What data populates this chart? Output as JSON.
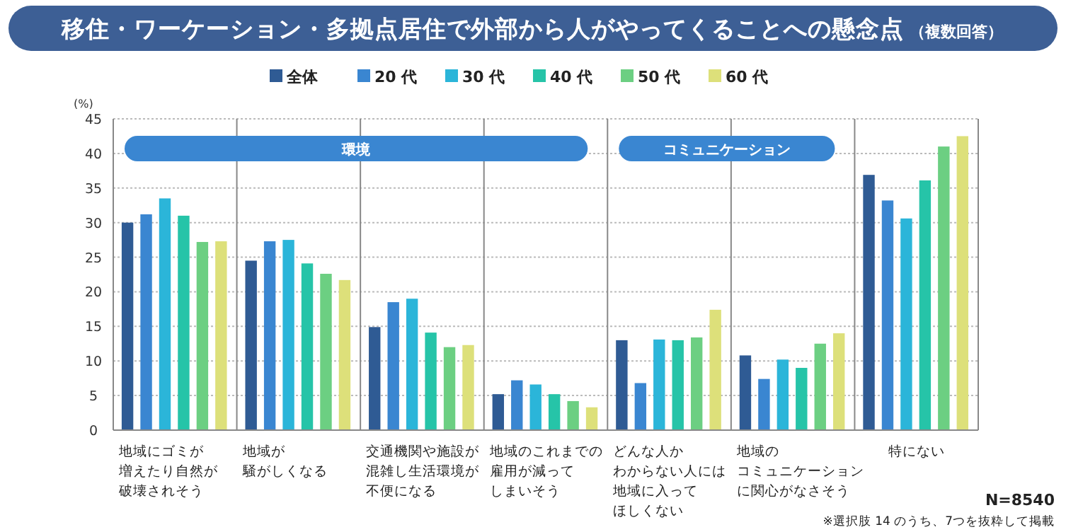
{
  "chart_data": {
    "type": "bar",
    "title": "移住・ワーケーション・多拠点居住で外部から人がやってくることへの懸念点",
    "subtitle": "（複数回答）",
    "ylabel": "(%)",
    "categories": [
      "地域にゴミが増えたり自然が破壊されそう",
      "地域が騒がしくなる",
      "交通機関や施設が混雑し生活環境が不便になる",
      "地域のこれまでの雇用が減ってしまいそう",
      "どんな人かわからない人には地域に入ってほしくない",
      "地域のコミュニケーションに関心がなさそう",
      "特にない"
    ],
    "series": [
      {
        "name": "全体",
        "color": "#2f5b94",
        "values": [
          30.0,
          24.5,
          14.9,
          5.2,
          13.0,
          10.8,
          36.9
        ]
      },
      {
        "name": "20 代",
        "color": "#3a86d1",
        "values": [
          31.2,
          27.3,
          18.5,
          7.2,
          6.8,
          7.4,
          33.2
        ]
      },
      {
        "name": "30 代",
        "color": "#2bb5d9",
        "values": [
          33.5,
          27.5,
          19.0,
          6.6,
          13.1,
          10.2,
          30.6
        ]
      },
      {
        "name": "40 代",
        "color": "#26c4a8",
        "values": [
          31.0,
          24.1,
          14.1,
          5.2,
          13.0,
          9.0,
          36.1
        ]
      },
      {
        "name": "50 代",
        "color": "#6ccf82",
        "values": [
          27.2,
          22.6,
          12.0,
          4.2,
          13.4,
          12.5,
          41.0
        ]
      },
      {
        "name": "60 代",
        "color": "#dde07a",
        "values": [
          27.3,
          21.7,
          12.3,
          3.3,
          17.4,
          14.0,
          42.5
        ]
      }
    ],
    "ylim": [
      0,
      45
    ],
    "yticks": [
      0,
      5,
      10,
      15,
      20,
      25,
      30,
      35,
      40,
      45
    ],
    "grid": "y",
    "legend": "top",
    "annotations": [
      "環境",
      "コミュニケーション",
      "N=8540",
      "※選択肢 14 のうち、7つを抜粋して掲載"
    ]
  }
}
